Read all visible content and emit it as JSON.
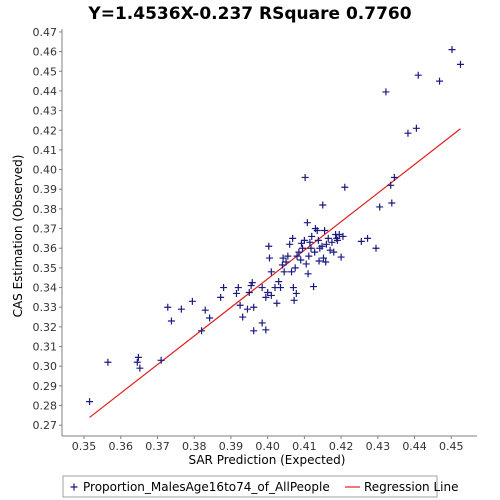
{
  "chart_data": {
    "type": "scatter",
    "title": "Y=1.4536X-0.237    RSquare 0.7760",
    "xlabel": "SAR Prediction (Expected)",
    "ylabel": "CAS Estimation (Observed)",
    "xlim": [
      0.344,
      0.457
    ],
    "ylim": [
      0.2645,
      0.4715
    ],
    "x_ticks": [
      0.35,
      0.36,
      0.37,
      0.38,
      0.39,
      0.4,
      0.41,
      0.42,
      0.43,
      0.44,
      0.45
    ],
    "x_tick_labels": [
      "0.35",
      "0.36",
      "0.37",
      "0.38",
      "0.39",
      "0.40",
      "0.41",
      "0.42",
      "0.43",
      "0.44",
      "0.45"
    ],
    "y_ticks": [
      0.27,
      0.28,
      0.29,
      0.3,
      0.31,
      0.32,
      0.33,
      0.34,
      0.35,
      0.36,
      0.37,
      0.38,
      0.39,
      0.4,
      0.41,
      0.42,
      0.43,
      0.44,
      0.45,
      0.46,
      0.47
    ],
    "y_tick_labels": [
      "0.27",
      "0.28",
      "0.29",
      "0.30",
      "0.31",
      "0.32",
      "0.33",
      "0.34",
      "0.35",
      "0.36",
      "0.37",
      "0.38",
      "0.39",
      "0.40",
      "0.41",
      "0.42",
      "0.43",
      "0.44",
      "0.45",
      "0.46",
      "0.47"
    ],
    "grid": false,
    "legend_position": "bottom",
    "series": [
      {
        "name": "Proportion_MalesAge16to74_of_AllPeople",
        "kind": "scatter",
        "marker": "plus",
        "color": "#1a1a80",
        "points": [
          [
            0.3515,
            0.282
          ],
          [
            0.3565,
            0.302
          ],
          [
            0.3645,
            0.302
          ],
          [
            0.3648,
            0.3045
          ],
          [
            0.3652,
            0.299
          ],
          [
            0.371,
            0.303
          ],
          [
            0.3728,
            0.33
          ],
          [
            0.3738,
            0.323
          ],
          [
            0.3765,
            0.329
          ],
          [
            0.3795,
            0.333
          ],
          [
            0.382,
            0.318
          ],
          [
            0.383,
            0.3285
          ],
          [
            0.3842,
            0.3245
          ],
          [
            0.3872,
            0.335
          ],
          [
            0.388,
            0.34
          ],
          [
            0.3915,
            0.337
          ],
          [
            0.392,
            0.34
          ],
          [
            0.3925,
            0.331
          ],
          [
            0.3932,
            0.325
          ],
          [
            0.3945,
            0.329
          ],
          [
            0.395,
            0.3375
          ],
          [
            0.3955,
            0.341
          ],
          [
            0.3958,
            0.3425
          ],
          [
            0.3962,
            0.318
          ],
          [
            0.3962,
            0.33
          ],
          [
            0.3985,
            0.322
          ],
          [
            0.3985,
            0.34
          ],
          [
            0.3995,
            0.3185
          ],
          [
            0.3995,
            0.335
          ],
          [
            0.4,
            0.3375
          ],
          [
            0.4003,
            0.361
          ],
          [
            0.4005,
            0.355
          ],
          [
            0.401,
            0.348
          ],
          [
            0.401,
            0.336
          ],
          [
            0.402,
            0.34
          ],
          [
            0.4025,
            0.332
          ],
          [
            0.403,
            0.343
          ],
          [
            0.4035,
            0.34
          ],
          [
            0.404,
            0.3515
          ],
          [
            0.4042,
            0.355
          ],
          [
            0.4045,
            0.348
          ],
          [
            0.405,
            0.353
          ],
          [
            0.4055,
            0.356
          ],
          [
            0.406,
            0.362
          ],
          [
            0.4065,
            0.348
          ],
          [
            0.4068,
            0.365
          ],
          [
            0.407,
            0.34
          ],
          [
            0.4072,
            0.3335
          ],
          [
            0.4075,
            0.35
          ],
          [
            0.4078,
            0.337
          ],
          [
            0.408,
            0.356
          ],
          [
            0.4085,
            0.358
          ],
          [
            0.409,
            0.354
          ],
          [
            0.4092,
            0.3625
          ],
          [
            0.4095,
            0.36
          ],
          [
            0.41,
            0.364
          ],
          [
            0.4102,
            0.396
          ],
          [
            0.4105,
            0.352
          ],
          [
            0.4108,
            0.373
          ],
          [
            0.411,
            0.347
          ],
          [
            0.4112,
            0.356
          ],
          [
            0.4115,
            0.363
          ],
          [
            0.4118,
            0.36
          ],
          [
            0.412,
            0.366
          ],
          [
            0.4125,
            0.3405
          ],
          [
            0.4128,
            0.358
          ],
          [
            0.413,
            0.37
          ],
          [
            0.4135,
            0.369
          ],
          [
            0.4138,
            0.364
          ],
          [
            0.414,
            0.3535
          ],
          [
            0.4142,
            0.36
          ],
          [
            0.4148,
            0.361
          ],
          [
            0.415,
            0.382
          ],
          [
            0.4152,
            0.355
          ],
          [
            0.4155,
            0.369
          ],
          [
            0.4158,
            0.353
          ],
          [
            0.416,
            0.362
          ],
          [
            0.4165,
            0.365
          ],
          [
            0.417,
            0.359
          ],
          [
            0.4175,
            0.363
          ],
          [
            0.418,
            0.358
          ],
          [
            0.4185,
            0.367
          ],
          [
            0.4188,
            0.365
          ],
          [
            0.419,
            0.364
          ],
          [
            0.4195,
            0.367
          ],
          [
            0.42,
            0.3555
          ],
          [
            0.4205,
            0.366
          ],
          [
            0.421,
            0.391
          ],
          [
            0.4255,
            0.3635
          ],
          [
            0.4272,
            0.365
          ],
          [
            0.4295,
            0.36
          ],
          [
            0.4305,
            0.381
          ],
          [
            0.4322,
            0.4395
          ],
          [
            0.4335,
            0.392
          ],
          [
            0.4338,
            0.383
          ],
          [
            0.4345,
            0.396
          ],
          [
            0.4382,
            0.4185
          ],
          [
            0.4405,
            0.421
          ],
          [
            0.441,
            0.448
          ],
          [
            0.4468,
            0.445
          ],
          [
            0.4502,
            0.461
          ],
          [
            0.4525,
            0.4535
          ]
        ]
      },
      {
        "name": "Regression Line",
        "kind": "line",
        "color": "#e02020",
        "slope": 1.4536,
        "intercept": -0.237,
        "x_range": [
          0.3515,
          0.4525
        ]
      }
    ]
  }
}
